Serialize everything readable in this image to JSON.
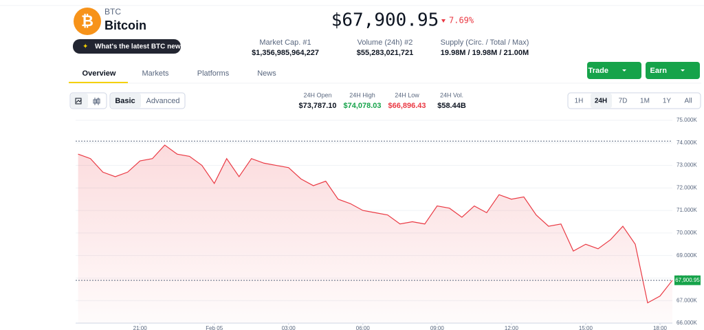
{
  "coin": {
    "symbol": "BTC",
    "name": "Bitcoin",
    "price": "$67,900.95",
    "change": "7.69%",
    "news": "What's the latest BTC news?"
  },
  "stats": [
    {
      "label": "Market Cap. #1",
      "value": "$1,356,985,964,227"
    },
    {
      "label": "Volume (24h) #2",
      "value": "$55,283,021,721"
    },
    {
      "label": "Supply (Circ. / Total / Max)",
      "value": "19.98M / 19.98M / 21.00M"
    }
  ],
  "tabs": [
    "Overview",
    "Markets",
    "Platforms",
    "News"
  ],
  "buttons": [
    "Trade",
    "Earn"
  ],
  "view_modes": [
    "Basic",
    "Advanced"
  ],
  "day_stats": [
    {
      "label": "24H Open",
      "value": "$73,787.10"
    },
    {
      "label": "24H High",
      "value": "$74,078.03"
    },
    {
      "label": "24H Low",
      "value": "$66,896.43"
    },
    {
      "label": "24H Vol.",
      "value": "$58.44B"
    }
  ],
  "ranges": [
    "1H",
    "24H",
    "7D",
    "1M",
    "1Y",
    "All"
  ],
  "chart_data": {
    "type": "line",
    "color": "#ea3943",
    "x": [
      -2.5,
      -2,
      -1.5,
      -1,
      -0.5,
      0,
      0.5,
      1,
      1.5,
      2,
      2.5,
      3,
      3.5,
      4,
      4.5,
      5,
      5.5,
      6,
      6.5,
      7,
      7.5,
      8,
      8.5,
      9,
      9.5,
      10,
      10.5,
      11,
      11.5,
      12,
      12.5,
      13,
      13.5,
      14,
      14.5,
      15,
      15.5,
      16,
      16.5,
      17,
      17.5,
      18,
      18.5,
      19,
      19.5,
      20,
      20.5,
      21,
      21.5
    ],
    "values": [
      73500,
      73300,
      72700,
      72500,
      72700,
      73200,
      73300,
      73900,
      73500,
      73400,
      73000,
      72200,
      73300,
      72500,
      73300,
      73100,
      73000,
      72900,
      72400,
      72100,
      72300,
      71500,
      71300,
      71000,
      70900,
      70800,
      70400,
      70500,
      70400,
      71200,
      71100,
      70700,
      71200,
      70900,
      71700,
      71500,
      71600,
      70800,
      70300,
      70400,
      69200,
      69500,
      69300,
      69700,
      70300,
      69500,
      66900,
      67200,
      67900.95
    ],
    "xlim": [
      -2.6,
      21.5
    ],
    "xticks": [
      {
        "value": 0,
        "label": "21:00"
      },
      {
        "value": 3,
        "label": "Feb 05"
      },
      {
        "value": 6,
        "label": "03:00"
      },
      {
        "value": 9,
        "label": "06:00"
      },
      {
        "value": 12,
        "label": "09:00"
      },
      {
        "value": 15,
        "label": "12:00"
      },
      {
        "value": 18,
        "label": "15:00"
      },
      {
        "value": 21,
        "label": "18:00"
      }
    ],
    "ylim": [
      66000,
      75000
    ],
    "yticks": [
      {
        "value": 66000,
        "label": "66.000K"
      },
      {
        "value": 67000,
        "label": "67.000K"
      },
      {
        "value": 68000,
        "label": "68.000K"
      },
      {
        "value": 69000,
        "label": "69.000K"
      },
      {
        "value": 70000,
        "label": "70.000K"
      },
      {
        "value": 71000,
        "label": "71.000K"
      },
      {
        "value": 72000,
        "label": "72.000K"
      },
      {
        "value": 73000,
        "label": "73.000K"
      },
      {
        "value": 74000,
        "label": "74.000K"
      },
      {
        "value": 75000,
        "label": "75.000K"
      }
    ],
    "high_line": 74078.03,
    "price_line": {
      "value": 67900.95,
      "label": "67,900.95"
    }
  }
}
